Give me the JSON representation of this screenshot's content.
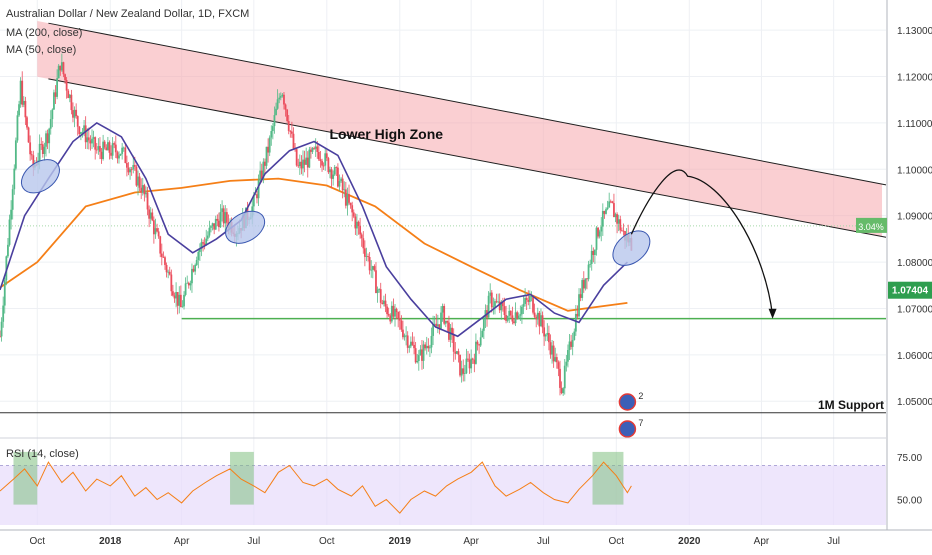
{
  "header": {
    "symbol_title": "Australian Dollar / New Zealand Dollar, 1D, FXCM",
    "indicators": [
      "MA (200, close)",
      "MA (50, close)"
    ]
  },
  "colors": {
    "up_candle": "#53b987",
    "down_candle": "#eb4d5c",
    "ma200": "#f57f17",
    "ma50": "#4a3f9e",
    "zone_fill": "#f6a8ad",
    "support_line": "#4caf50",
    "rsi_line": "#f57f17",
    "rsi_band": "#e7dcfb",
    "highlight_box": "#7fbf7f",
    "ellipse_fill": "#b8c7ec",
    "ellipse_stroke": "#3a57b0"
  },
  "chart_data": [
    {
      "type": "candlestick",
      "title": "Australian Dollar / New Zealand Dollar, 1D, FXCM",
      "x_ticks": [
        "Oct",
        "2018",
        "Apr",
        "Jul",
        "Oct",
        "2019",
        "Apr",
        "Jul",
        "Oct",
        "2020",
        "Apr",
        "Jul"
      ],
      "y_ticks": [
        "1.13000",
        "1.12000",
        "1.11000",
        "1.10000",
        "1.09000",
        "1.08000",
        "1.07000",
        "1.06000",
        "1.05000"
      ],
      "ylim": [
        1.0425,
        1.1365
      ],
      "xlim": [
        "2017-08-15",
        "2020-09-05"
      ],
      "series": [
        {
          "name": "MA (200, close)",
          "x": [
            "2017-08-15",
            "2017-10-01",
            "2017-12-01",
            "2018-02-01",
            "2018-04-01",
            "2018-06-01",
            "2018-08-01",
            "2018-10-01",
            "2018-12-01",
            "2019-02-01",
            "2019-04-01",
            "2019-06-01",
            "2019-08-01",
            "2019-10-15"
          ],
          "y": [
            1.0745,
            1.08,
            1.092,
            1.095,
            1.096,
            1.0975,
            1.098,
            1.0965,
            1.092,
            1.084,
            1.079,
            1.074,
            1.0695,
            1.0712
          ]
        },
        {
          "name": "MA (50, close)",
          "x": [
            "2017-08-15",
            "2017-09-15",
            "2017-10-15",
            "2017-11-15",
            "2017-12-15",
            "2018-01-15",
            "2018-02-15",
            "2018-03-15",
            "2018-04-15",
            "2018-05-15",
            "2018-06-15",
            "2018-07-15",
            "2018-08-15",
            "2018-09-15",
            "2018-10-15",
            "2018-11-15",
            "2018-12-15",
            "2019-01-15",
            "2019-02-15",
            "2019-03-15",
            "2019-04-15",
            "2019-05-15",
            "2019-06-15",
            "2019-07-15",
            "2019-08-15",
            "2019-09-15",
            "2019-10-15"
          ],
          "y": [
            1.074,
            1.09,
            1.098,
            1.106,
            1.11,
            1.107,
            1.098,
            1.086,
            1.082,
            1.085,
            1.089,
            1.099,
            1.104,
            1.106,
            1.103,
            1.092,
            1.079,
            1.072,
            1.066,
            1.064,
            1.068,
            1.072,
            1.073,
            1.069,
            1.067,
            1.075,
            1.08
          ]
        }
      ],
      "price_path": {
        "x": [
          "2017-08-15",
          "2017-09-10",
          "2017-09-25",
          "2017-10-15",
          "2017-10-30",
          "2017-11-20",
          "2017-12-15",
          "2018-01-15",
          "2018-02-10",
          "2018-03-10",
          "2018-03-31",
          "2018-04-20",
          "2018-05-20",
          "2018-06-10",
          "2018-06-30",
          "2018-07-20",
          "2018-08-05",
          "2018-08-25",
          "2018-09-20",
          "2018-10-15",
          "2018-11-10",
          "2018-12-10",
          "2018-12-31",
          "2019-01-25",
          "2019-02-25",
          "2019-03-20",
          "2019-04-05",
          "2019-04-25",
          "2019-05-20",
          "2019-06-15",
          "2019-07-10",
          "2019-07-25",
          "2019-08-15",
          "2019-09-10",
          "2019-09-25",
          "2019-10-10",
          "2019-10-20"
        ],
        "y": [
          1.064,
          1.118,
          1.1,
          1.108,
          1.123,
          1.11,
          1.104,
          1.104,
          1.096,
          1.08,
          1.07,
          1.082,
          1.09,
          1.087,
          1.092,
          1.105,
          1.118,
          1.1,
          1.104,
          1.098,
          1.087,
          1.071,
          1.067,
          1.059,
          1.069,
          1.056,
          1.06,
          1.072,
          1.068,
          1.072,
          1.062,
          1.053,
          1.072,
          1.088,
          1.092,
          1.086,
          1.084
        ]
      },
      "annotations": {
        "zone_label": "Lower High Zone",
        "support_label": "1M Support",
        "percent_badge": "3.04%",
        "last_price": "1.07404",
        "support_1m_value": 1.0475,
        "green_support_value": 1.0678,
        "upper_trendline": {
          "from": [
            "2017-10-15",
            1.1315
          ],
          "to": [
            "2020-08-31",
            1.0968
          ]
        },
        "lower_trendline": {
          "from": [
            "2017-10-15",
            1.1195
          ],
          "to": [
            "2020-08-31",
            1.0855
          ]
        },
        "horizontal_ref_value": 1.0878,
        "projection": {
          "x": [
            "2019-10-20",
            "2019-12-30",
            "2020-04-15"
          ],
          "y": [
            1.086,
            1.0985,
            1.068
          ]
        },
        "event_markers": [
          "2",
          "7"
        ]
      }
    },
    {
      "type": "line",
      "title": "RSI (14, close)",
      "y_ticks": [
        "75.00",
        "50.00"
      ],
      "ylim": [
        35,
        85
      ],
      "band": [
        30,
        70
      ],
      "x": [
        "2017-08-15",
        "2017-09-01",
        "2017-09-15",
        "2017-10-01",
        "2017-10-15",
        "2017-11-01",
        "2017-11-15",
        "2017-12-01",
        "2017-12-15",
        "2018-01-01",
        "2018-01-15",
        "2018-02-01",
        "2018-02-15",
        "2018-03-01",
        "2018-03-15",
        "2018-04-01",
        "2018-04-15",
        "2018-05-01",
        "2018-05-15",
        "2018-06-01",
        "2018-06-15",
        "2018-07-01",
        "2018-07-15",
        "2018-08-01",
        "2018-08-15",
        "2018-09-01",
        "2018-09-15",
        "2018-10-01",
        "2018-10-15",
        "2018-11-01",
        "2018-11-15",
        "2018-12-01",
        "2018-12-15",
        "2019-01-01",
        "2019-01-15",
        "2019-02-01",
        "2019-02-15",
        "2019-03-01",
        "2019-03-15",
        "2019-04-01",
        "2019-04-15",
        "2019-05-01",
        "2019-05-15",
        "2019-06-01",
        "2019-06-15",
        "2019-07-01",
        "2019-07-15",
        "2019-08-01",
        "2019-08-15",
        "2019-09-01",
        "2019-09-15",
        "2019-10-01",
        "2019-10-15",
        "2019-10-20"
      ],
      "y": [
        55,
        62,
        68,
        58,
        72,
        60,
        66,
        55,
        62,
        58,
        64,
        52,
        57,
        50,
        54,
        48,
        55,
        60,
        64,
        68,
        62,
        58,
        54,
        66,
        70,
        60,
        58,
        62,
        56,
        52,
        58,
        46,
        50,
        42,
        50,
        55,
        52,
        58,
        62,
        66,
        72,
        58,
        52,
        56,
        60,
        54,
        50,
        48,
        56,
        64,
        72,
        64,
        54,
        58
      ]
    }
  ]
}
